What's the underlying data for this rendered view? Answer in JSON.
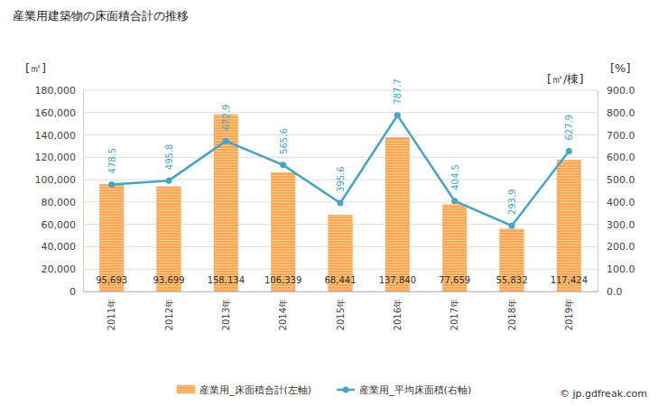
{
  "chart_data": {
    "type": "bar",
    "title": "産業用建築物の床面積合計の推移",
    "ylabel": "[㎡]",
    "y2label": "[㎡/棟]",
    "annotations": [
      "[%]",
      "© jp.gdfreak.com"
    ],
    "categories": [
      "2011年",
      "2012年",
      "2013年",
      "2014年",
      "2015年",
      "2016年",
      "2017年",
      "2018年",
      "2019年"
    ],
    "series": [
      {
        "name": "産業用_床面積合計(左軸)",
        "type": "bar",
        "color": "#f5a55f",
        "values": [
          95693,
          93699,
          158134,
          106339,
          68441,
          137840,
          77659,
          55832,
          117424
        ],
        "value_labels": [
          "95,693",
          "93,699",
          "158,134",
          "106,339",
          "68,441",
          "137,840",
          "77,659",
          "55,832",
          "117,424"
        ]
      },
      {
        "name": "産業用_平均床面積(右軸)",
        "type": "line",
        "axis": "y2",
        "color": "#4aa3c2",
        "marker": "circle",
        "values": [
          478.5,
          495.8,
          672.9,
          565.6,
          395.6,
          787.7,
          404.5,
          293.9,
          627.9
        ]
      }
    ],
    "ylim": [
      0,
      180000
    ],
    "yticks": [
      0,
      {
        "value": 20000,
        "label": "20,000"
      },
      {
        "value": 40000,
        "label": "40,000"
      },
      {
        "value": 60000,
        "label": "60,000"
      },
      {
        "value": 80000,
        "label": "80,000"
      },
      {
        "value": 100000,
        "label": "100,000"
      },
      {
        "value": 120000,
        "label": "120,000"
      },
      {
        "value": 140000,
        "label": "140,000"
      },
      {
        "value": 160000,
        "label": "160,000"
      },
      {
        "value": 180000,
        "label": "180,000"
      }
    ],
    "y2lim": [
      0,
      900
    ],
    "y2ticks": [
      {
        "value": 0,
        "label": "0.0"
      },
      {
        "value": 100,
        "label": "100.0"
      },
      {
        "value": 200,
        "label": "200.0"
      },
      {
        "value": 300,
        "label": "300.0"
      },
      {
        "value": 400,
        "label": "400.0"
      },
      {
        "value": 500,
        "label": "500.0"
      },
      {
        "value": 600,
        "label": "600.0"
      },
      {
        "value": 700,
        "label": "700.0"
      },
      {
        "value": 800,
        "label": "800.0"
      },
      {
        "value": 900,
        "label": "900.0"
      }
    ],
    "grid": true,
    "data_labels": true,
    "legend": "bottom"
  }
}
